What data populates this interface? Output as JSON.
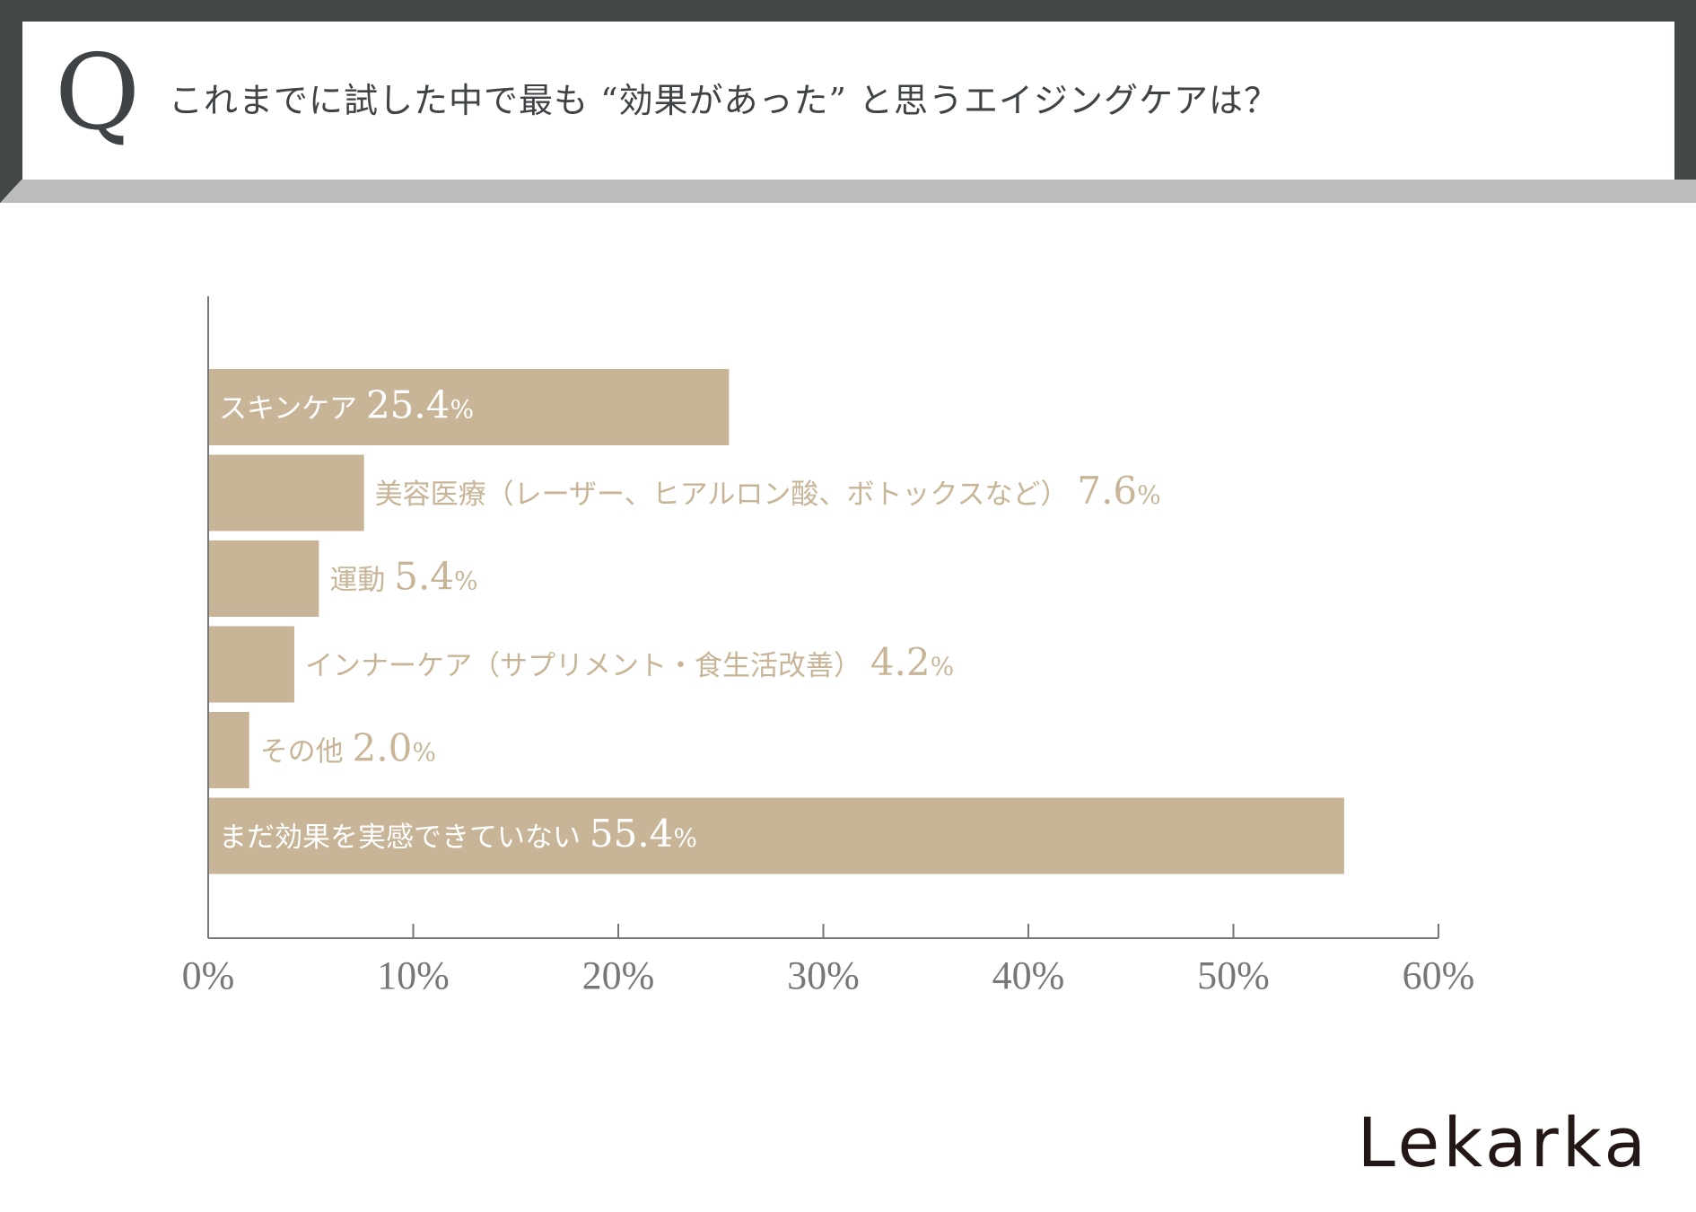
{
  "header": {
    "q_mark": "Q",
    "question": "これまでに試した中で最も “効果があった” と思うエイジングケアは？"
  },
  "chart_data": {
    "type": "bar",
    "orientation": "horizontal",
    "title": "これまでに試した中で最も “効果があった” と思うエイジングケアは？",
    "categories": [
      "スキンケア",
      "美容医療（レーザー、ヒアルロン酸、ボトックスなど）",
      "運動",
      "インナーケア（サプリメント・食生活改善）",
      "その他",
      "まだ効果を実感できていない"
    ],
    "values": [
      25.4,
      7.6,
      5.4,
      4.2,
      2.0,
      55.4
    ],
    "value_labels": [
      "25.4",
      "7.6",
      "5.4",
      "4.2",
      "2.0",
      "55.4"
    ],
    "unit": "%",
    "xlim": [
      0,
      60
    ],
    "x_ticks": [
      0,
      10,
      20,
      30,
      40,
      50,
      60
    ],
    "x_tick_labels": [
      "0%",
      "10%",
      "20%",
      "30%",
      "40%",
      "50%",
      "60%"
    ],
    "grid": false,
    "colors": {
      "bar": "#c8b597",
      "label_inside": "#ffffff",
      "label_outside": "#c8b597",
      "axis": "#777777"
    }
  },
  "brand": {
    "logo_text": "Lekarka"
  }
}
